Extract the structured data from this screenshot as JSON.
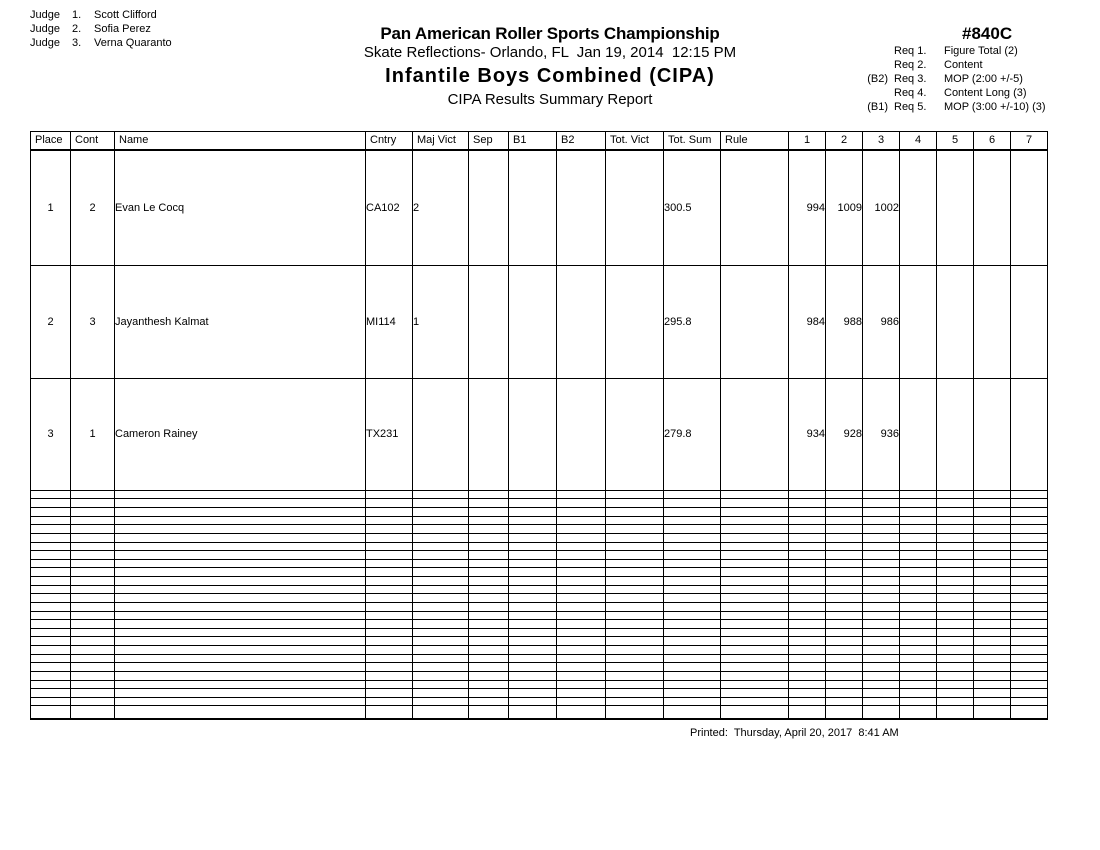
{
  "judges": {
    "label": "Judge",
    "list": [
      {
        "num": "1.",
        "name": "Scott Clifford"
      },
      {
        "num": "2.",
        "name": "Sofia Perez"
      },
      {
        "num": "3.",
        "name": "Verna Quaranto"
      }
    ]
  },
  "header": {
    "title": "Pan American Roller Sports Championship",
    "venue_line": "Skate Reflections- Orlando, FL  Jan 19, 2014  12:15 PM",
    "event_title": "Infantile Boys Combined (CIPA)",
    "report_title": "CIPA Results Summary Report"
  },
  "event": {
    "number": "#840C",
    "requirements": [
      {
        "prefix": "",
        "label": "Req 1.",
        "text": "Figure Total (2)"
      },
      {
        "prefix": "",
        "label": "Req 2.",
        "text": "Content"
      },
      {
        "prefix": "(B2)",
        "label": "Req 3.",
        "text": "MOP (2:00 +/-5)"
      },
      {
        "prefix": "",
        "label": "Req 4.",
        "text": "Content Long (3)"
      },
      {
        "prefix": "(B1)",
        "label": "Req 5.",
        "text": "MOP (3:00 +/-10) (3)"
      }
    ]
  },
  "table": {
    "columns": [
      "Place",
      "Cont",
      "Name",
      "Cntry",
      "Maj Vict",
      "Sep",
      "B1",
      "B2",
      "Tot. Vict",
      "Tot. Sum",
      "Rule",
      "1",
      "2",
      "3",
      "4",
      "5",
      "6",
      "7"
    ],
    "rows": [
      [
        "1",
        "2",
        "Evan Le Cocq",
        "CA102",
        "2",
        "",
        "",
        "",
        "",
        "300.5",
        "",
        "994",
        "1009",
        "1002",
        "",
        "",
        "",
        ""
      ],
      [
        "2",
        "3",
        "Jayanthesh Kalmat",
        "MI114",
        "1",
        "",
        "",
        "",
        "",
        "295.8",
        "",
        "984",
        "988",
        "986",
        "",
        "",
        "",
        ""
      ],
      [
        "3",
        "1",
        "Cameron Rainey",
        "TX231",
        "",
        "",
        "",
        "",
        "",
        "279.8",
        "",
        "934",
        "928",
        "936",
        "",
        "",
        "",
        ""
      ]
    ],
    "empty_rows": 26
  },
  "footer": {
    "printed": "Printed:  Thursday, April 20, 2017  8:41 AM"
  },
  "colors": {
    "background": "#ffffff",
    "ink": "#000000"
  }
}
